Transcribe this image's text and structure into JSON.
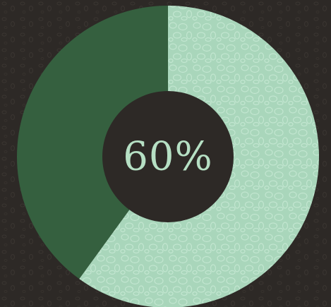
{
  "chart_data": {
    "type": "pie",
    "variant": "donut",
    "slices": [
      {
        "label": "",
        "value": 60,
        "color": "#a9d6bb",
        "textured": true
      },
      {
        "label": "",
        "value": 40,
        "color": "#35603f",
        "textured": false
      }
    ],
    "center_label": "60%",
    "start_angle": "12 o'clock",
    "direction": "clockwise",
    "colors": {
      "background": "#2d2926",
      "hole": "#2d2926",
      "center_text": "#b6e0c4",
      "texture_stroke": "#c2e6d0"
    }
  }
}
